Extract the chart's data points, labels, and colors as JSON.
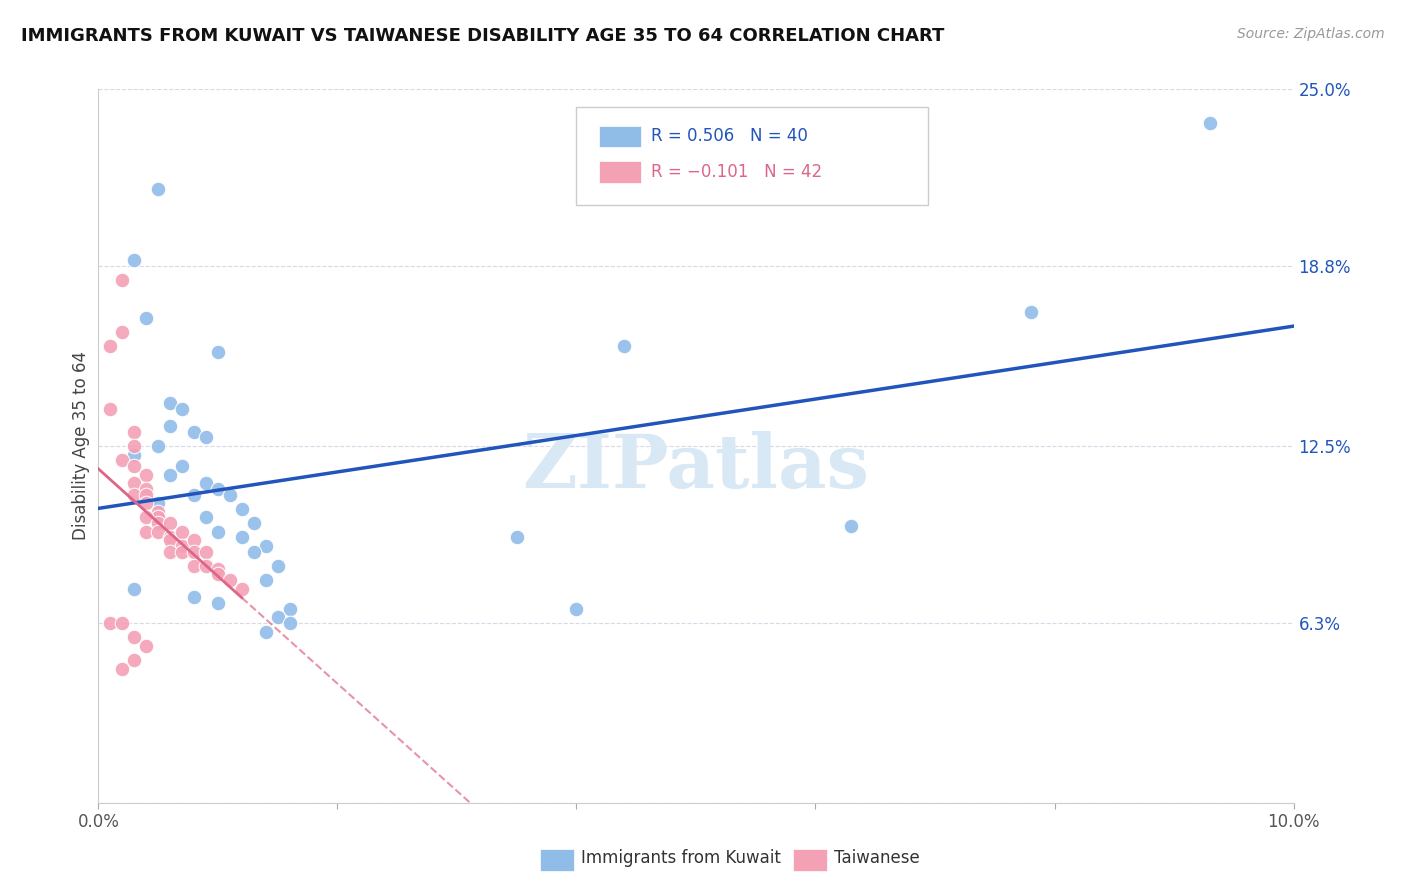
{
  "title": "IMMIGRANTS FROM KUWAIT VS TAIWANESE DISABILITY AGE 35 TO 64 CORRELATION CHART",
  "source": "Source: ZipAtlas.com",
  "ylabel": "Disability Age 35 to 64",
  "xlim": [
    0.0,
    0.1
  ],
  "ylim": [
    0.0,
    0.25
  ],
  "xtick_values": [
    0.0,
    0.02,
    0.04,
    0.06,
    0.08,
    0.1
  ],
  "xticklabels": [
    "0.0%",
    "",
    "",
    "",
    "",
    "10.0%"
  ],
  "ytick_values": [
    0.0,
    0.063,
    0.125,
    0.188,
    0.25
  ],
  "ytick_labels": [
    "",
    "6.3%",
    "12.5%",
    "18.8%",
    "25.0%"
  ],
  "r_kuwait": 0.506,
  "n_kuwait": 40,
  "r_taiwanese": -0.101,
  "n_taiwanese": 42,
  "kuwait_color": "#90bce8",
  "taiwanese_color": "#f4a0b5",
  "regression_kuwait_color": "#2255bb",
  "regression_taiwanese_color": "#dd6688",
  "kuwait_scatter": [
    [
      0.005,
      0.215
    ],
    [
      0.003,
      0.19
    ],
    [
      0.004,
      0.17
    ],
    [
      0.01,
      0.158
    ],
    [
      0.006,
      0.14
    ],
    [
      0.007,
      0.138
    ],
    [
      0.006,
      0.132
    ],
    [
      0.008,
      0.13
    ],
    [
      0.009,
      0.128
    ],
    [
      0.005,
      0.125
    ],
    [
      0.003,
      0.122
    ],
    [
      0.007,
      0.118
    ],
    [
      0.006,
      0.115
    ],
    [
      0.009,
      0.112
    ],
    [
      0.01,
      0.11
    ],
    [
      0.008,
      0.108
    ],
    [
      0.011,
      0.108
    ],
    [
      0.005,
      0.105
    ],
    [
      0.012,
      0.103
    ],
    [
      0.009,
      0.1
    ],
    [
      0.013,
      0.098
    ],
    [
      0.01,
      0.095
    ],
    [
      0.012,
      0.093
    ],
    [
      0.014,
      0.09
    ],
    [
      0.013,
      0.088
    ],
    [
      0.015,
      0.083
    ],
    [
      0.014,
      0.078
    ],
    [
      0.003,
      0.075
    ],
    [
      0.008,
      0.072
    ],
    [
      0.01,
      0.07
    ],
    [
      0.016,
      0.068
    ],
    [
      0.015,
      0.065
    ],
    [
      0.016,
      0.063
    ],
    [
      0.014,
      0.06
    ],
    [
      0.035,
      0.093
    ],
    [
      0.04,
      0.068
    ],
    [
      0.044,
      0.16
    ],
    [
      0.063,
      0.097
    ],
    [
      0.078,
      0.172
    ],
    [
      0.093,
      0.238
    ]
  ],
  "taiwanese_scatter": [
    [
      0.001,
      0.16
    ],
    [
      0.002,
      0.183
    ],
    [
      0.002,
      0.165
    ],
    [
      0.001,
      0.138
    ],
    [
      0.003,
      0.13
    ],
    [
      0.003,
      0.125
    ],
    [
      0.002,
      0.12
    ],
    [
      0.003,
      0.118
    ],
    [
      0.004,
      0.115
    ],
    [
      0.003,
      0.112
    ],
    [
      0.004,
      0.11
    ],
    [
      0.003,
      0.108
    ],
    [
      0.004,
      0.108
    ],
    [
      0.004,
      0.105
    ],
    [
      0.005,
      0.102
    ],
    [
      0.005,
      0.1
    ],
    [
      0.004,
      0.1
    ],
    [
      0.005,
      0.098
    ],
    [
      0.006,
      0.098
    ],
    [
      0.004,
      0.095
    ],
    [
      0.005,
      0.095
    ],
    [
      0.006,
      0.093
    ],
    [
      0.007,
      0.095
    ],
    [
      0.006,
      0.092
    ],
    [
      0.007,
      0.09
    ],
    [
      0.006,
      0.088
    ],
    [
      0.007,
      0.088
    ],
    [
      0.008,
      0.092
    ],
    [
      0.008,
      0.088
    ],
    [
      0.008,
      0.083
    ],
    [
      0.009,
      0.088
    ],
    [
      0.009,
      0.083
    ],
    [
      0.01,
      0.082
    ],
    [
      0.01,
      0.08
    ],
    [
      0.011,
      0.078
    ],
    [
      0.012,
      0.075
    ],
    [
      0.001,
      0.063
    ],
    [
      0.002,
      0.063
    ],
    [
      0.003,
      0.058
    ],
    [
      0.004,
      0.055
    ],
    [
      0.003,
      0.05
    ],
    [
      0.002,
      0.047
    ]
  ],
  "background_color": "#ffffff",
  "grid_color": "#d8d8e8",
  "watermark_text": "ZIPatlas",
  "watermark_color": "#d8e8f4",
  "legend_r1_text": "R = 0.506   N = 40",
  "legend_r2_text": "R = −0.101   N = 42"
}
